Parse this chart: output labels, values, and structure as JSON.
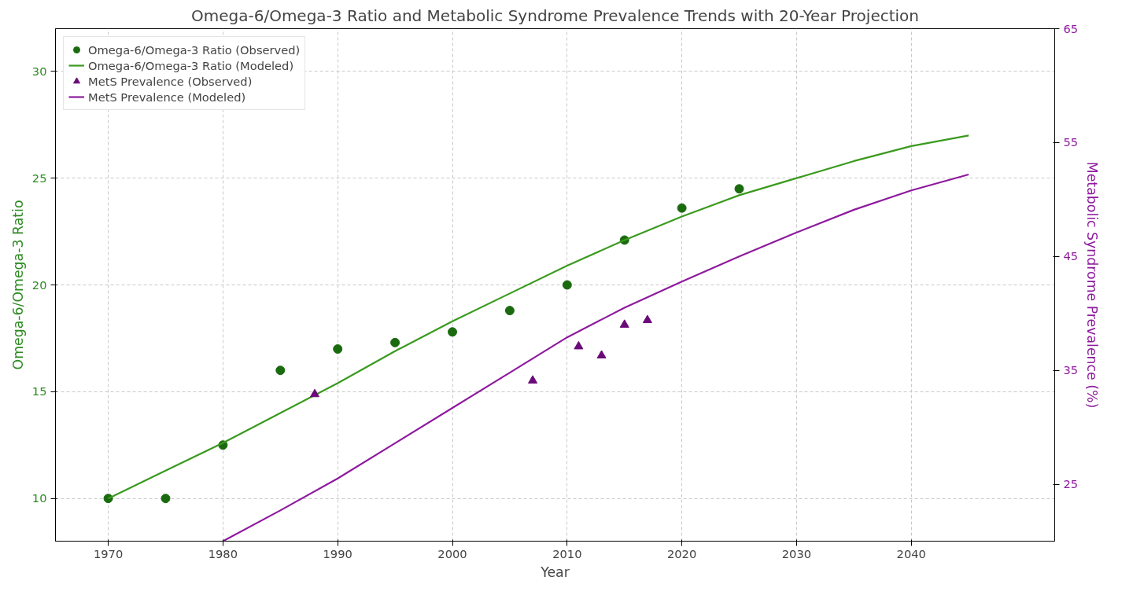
{
  "chart_data": {
    "type": "line",
    "title": "Omega-6/Omega-3 Ratio and Metabolic Syndrome Prevalence Trends with 20-Year Projection",
    "xlabel": "Year",
    "ylabel": "Omega-6/Omega-3 Ratio",
    "y2label": "Metabolic Syndrome Prevalence (%)",
    "xlim": [
      1965.4,
      2052.5
    ],
    "xticks": [
      1970,
      1980,
      1990,
      2000,
      2010,
      2020,
      2030,
      2040
    ],
    "ylim": [
      8,
      32
    ],
    "yticks": [
      10,
      15,
      20,
      25,
      30
    ],
    "y2lim": [
      20,
      65
    ],
    "y2ticks": [
      25,
      35,
      45,
      55,
      65
    ],
    "grid": true,
    "legend": "top left",
    "series": [
      {
        "name": "Omega-6/Omega-3 Ratio (Observed)",
        "type": "scatter",
        "marker": "circle",
        "color": "#1a6b0f",
        "x": [
          1970,
          1975,
          1980,
          1985,
          1990,
          1995,
          2000,
          2005,
          2010,
          2015,
          2020,
          2025
        ],
        "values": [
          10,
          10,
          12.5,
          16.0,
          17.0,
          17.3,
          17.8,
          18.8,
          20.0,
          22.1,
          23.6,
          24.5
        ]
      },
      {
        "name": "Omega-6/Omega-3 Ratio (Modeled)",
        "color": "#3a9a1e",
        "x": [
          1970,
          1975,
          1980,
          1985,
          1990,
          1995,
          2000,
          2005,
          2010,
          2015,
          2020,
          2025,
          2030,
          2035,
          2040,
          2045
        ],
        "values": [
          10,
          11.3,
          12.6,
          14.0,
          15.4,
          16.9,
          18.3,
          19.6,
          20.9,
          22.1,
          23.2,
          24.2,
          25.0,
          25.8,
          26.5,
          27.0
        ]
      },
      {
        "name": "MetS Prevalence (Observed)",
        "type": "scatter",
        "marker": "triangle",
        "axis": "y2",
        "color": "#6a0a78",
        "x": [
          1988,
          2007,
          2011,
          2013,
          2015,
          2017
        ],
        "values": [
          32.9,
          34.1,
          37.1,
          36.3,
          39.0,
          39.4
        ]
      },
      {
        "name": "MetS Prevalence (Modeled)",
        "axis": "y2",
        "color": "#8e1a9e",
        "x": [
          1980,
          1985,
          1990,
          1995,
          2000,
          2005,
          2010,
          2015,
          2020,
          2025,
          2030,
          2035,
          2040,
          2045
        ],
        "values": [
          20.0,
          22.7,
          25.5,
          28.6,
          31.7,
          34.8,
          37.9,
          40.5,
          42.8,
          45.0,
          47.1,
          49.1,
          50.8,
          52.2
        ]
      }
    ]
  }
}
